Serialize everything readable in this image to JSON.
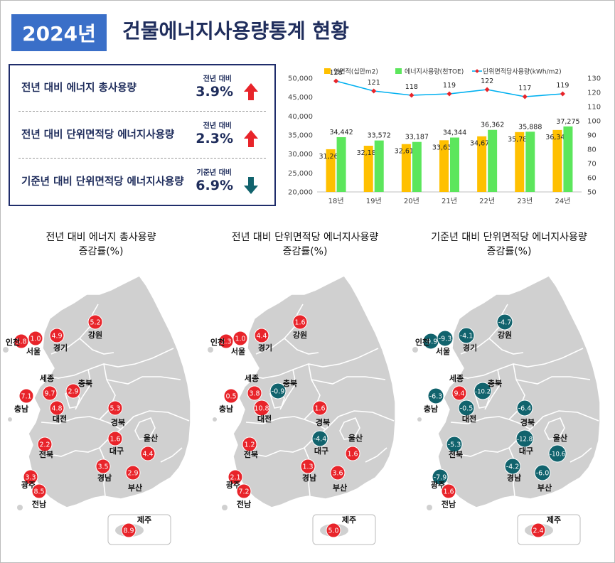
{
  "header": {
    "year_badge": "2024년",
    "title": "건물에너지사용량통계 현황"
  },
  "summary": [
    {
      "label": "전년 대비 에너지 총사용량",
      "compare": "전년 대비",
      "value": "3.9%",
      "direction": "up"
    },
    {
      "label": "전년 대비 단위면적당 에너지사용량",
      "compare": "전년 대비",
      "value": "2.3%",
      "direction": "up"
    },
    {
      "label": "기준년 대비 단위면적당 에너지사용량",
      "compare": "기준년 대비",
      "value": "6.9%",
      "direction": "down"
    }
  ],
  "colors": {
    "bar_area": "#ffc000",
    "bar_energy": "#5ce65c",
    "line": "#00b0f0",
    "line_marker": "#e8242a",
    "increase": "#e8242a",
    "decrease": "#11636d",
    "map_fill": "#d0d0d0",
    "title_bg": "#3a6fc8",
    "navy": "#1f2d5c"
  },
  "chart_data": {
    "type": "bar",
    "categories": [
      "18년",
      "19년",
      "20년",
      "21년",
      "22년",
      "23년",
      "24년"
    ],
    "series": [
      {
        "name": "연면적(십만m2)",
        "kind": "bar",
        "axis": "left",
        "values": [
          31263,
          32187,
          32619,
          33632,
          34672,
          35789,
          36343
        ]
      },
      {
        "name": "에너지사용량(천TOE)",
        "kind": "bar",
        "axis": "left",
        "values": [
          34442,
          33572,
          33187,
          34344,
          36362,
          35888,
          37275
        ]
      },
      {
        "name": "단위면적당사용량(kWh/m2)",
        "kind": "line",
        "axis": "right",
        "values": [
          128,
          121,
          118,
          119,
          122,
          117,
          119
        ]
      }
    ],
    "ylim": [
      20000,
      50000
    ],
    "yticks": [
      "20,000",
      "25,000",
      "30,000",
      "35,000",
      "40,000",
      "45,000",
      "50,000"
    ],
    "y2lim": [
      50,
      130
    ],
    "y2ticks": [
      "50",
      "60",
      "70",
      "80",
      "90",
      "100",
      "110",
      "120",
      "130"
    ],
    "legend_position": "top"
  },
  "maps": [
    {
      "title_line1": "전년 대비 에너지 총사용량",
      "title_line2": "증감률(%)",
      "regions": [
        {
          "name": "인천",
          "value": "5.8"
        },
        {
          "name": "서울",
          "value": "1.0"
        },
        {
          "name": "경기",
          "value": "4.9"
        },
        {
          "name": "강원",
          "value": "5.2"
        },
        {
          "name": "세종",
          "value": "9.7"
        },
        {
          "name": "충북",
          "value": "2.9"
        },
        {
          "name": "충남",
          "value": "7.1"
        },
        {
          "name": "대전",
          "value": "4.8"
        },
        {
          "name": "경북",
          "value": "5.3"
        },
        {
          "name": "대구",
          "value": "1.6"
        },
        {
          "name": "울산",
          "value": "4.4"
        },
        {
          "name": "전북",
          "value": "2.2"
        },
        {
          "name": "광주",
          "value": "3.3"
        },
        {
          "name": "전남",
          "value": "8.5"
        },
        {
          "name": "경남",
          "value": "3.5"
        },
        {
          "name": "부산",
          "value": "2.9"
        },
        {
          "name": "제주",
          "value": "8.9"
        }
      ]
    },
    {
      "title_line1": "전년 대비 단위면적당 에너지사용량",
      "title_line2": "증감률(%)",
      "regions": [
        {
          "name": "인천",
          "value": "2.3"
        },
        {
          "name": "서울",
          "value": "1.0"
        },
        {
          "name": "경기",
          "value": "4.4"
        },
        {
          "name": "강원",
          "value": "1.6"
        },
        {
          "name": "세종",
          "value": "3.8"
        },
        {
          "name": "충북",
          "value": "-0.9"
        },
        {
          "name": "충남",
          "value": "0.5"
        },
        {
          "name": "대전",
          "value": "10.8"
        },
        {
          "name": "경북",
          "value": "1.6"
        },
        {
          "name": "대구",
          "value": "-4.4"
        },
        {
          "name": "울산",
          "value": "1.6"
        },
        {
          "name": "전북",
          "value": "1.2"
        },
        {
          "name": "광주",
          "value": "2.1"
        },
        {
          "name": "전남",
          "value": "7.2"
        },
        {
          "name": "경남",
          "value": "1.3"
        },
        {
          "name": "부산",
          "value": "3.6"
        },
        {
          "name": "제주",
          "value": "5.0"
        }
      ]
    },
    {
      "title_line1": "기준년 대비 단위면적당 에너지사용량",
      "title_line2": "증감률(%)",
      "regions": [
        {
          "name": "인천",
          "value": "-9.9"
        },
        {
          "name": "서울",
          "value": "-9.3"
        },
        {
          "name": "경기",
          "value": "-4.1"
        },
        {
          "name": "강원",
          "value": "-4.7"
        },
        {
          "name": "세종",
          "value": "9.4"
        },
        {
          "name": "충북",
          "value": "-10.2"
        },
        {
          "name": "충남",
          "value": "-6.3"
        },
        {
          "name": "대전",
          "value": "-0.5"
        },
        {
          "name": "경북",
          "value": "-6.4"
        },
        {
          "name": "대구",
          "value": "-12.8"
        },
        {
          "name": "울산",
          "value": "-10.6"
        },
        {
          "name": "전북",
          "value": "-5.3"
        },
        {
          "name": "광주",
          "value": "-7.9"
        },
        {
          "name": "전남",
          "value": "1.6"
        },
        {
          "name": "경남",
          "value": "-4.2"
        },
        {
          "name": "부산",
          "value": "-6.0"
        },
        {
          "name": "제주",
          "value": "2.4"
        }
      ]
    }
  ]
}
